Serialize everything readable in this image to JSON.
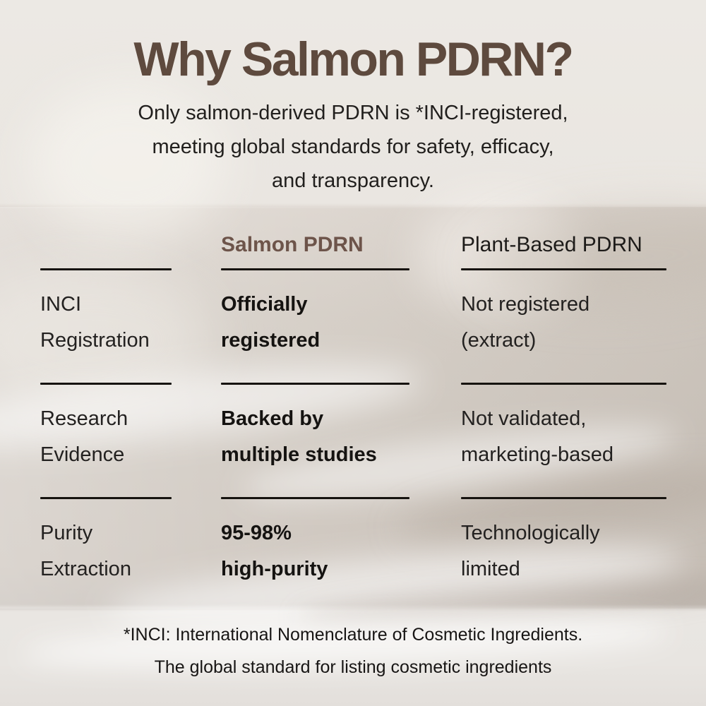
{
  "title": "Why Salmon PDRN?",
  "subtitle": "Only salmon-derived PDRN is *INCI-registered,\nmeeting global standards for safety, efficacy,\nand transparency.",
  "comparison_table": {
    "header": {
      "row_label": "",
      "salmon": "Salmon PDRN",
      "plant": "Plant-Based PDRN"
    },
    "rows": [
      {
        "label": "INCI\nRegistration",
        "salmon": "Officially\nregistered",
        "plant": "Not registered\n(extract)"
      },
      {
        "label": "Research\nEvidence",
        "salmon": "Backed by\nmultiple studies",
        "plant": "Not validated,\nmarketing-based"
      },
      {
        "label": "Purity\nExtraction",
        "salmon": "95-98%\nhigh-purity",
        "plant": "Technologically\nlimited"
      }
    ]
  },
  "footnote": "*INCI: International Nomenclature of Cosmetic Ingredients.\nThe global standard for listing cosmetic ingredients",
  "colors": {
    "title_brown": "#5e4a3e",
    "salmon_column_brown": "#6d544a",
    "text_black": "#1d1b19",
    "rule_black": "#16130f",
    "background_top": "#ece9e4",
    "background_middle": "#d0c9c1",
    "background_bottom": "#e8e5e1"
  }
}
